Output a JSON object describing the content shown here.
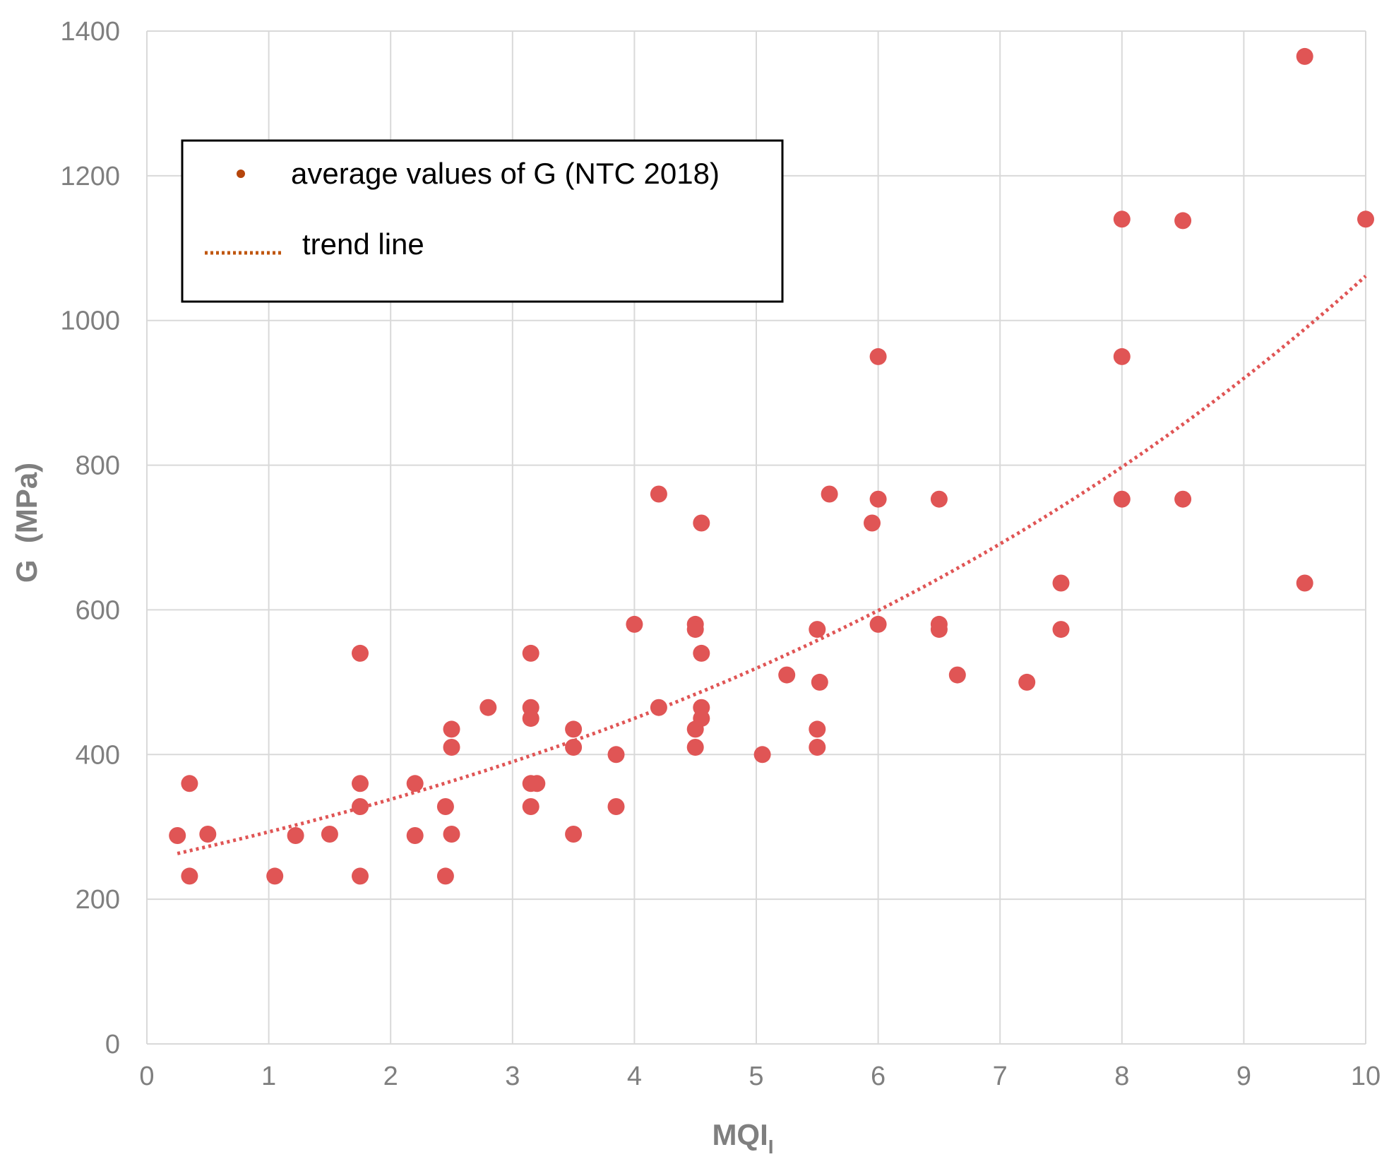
{
  "chart_data": {
    "type": "scatter",
    "xlabel": "MQI",
    "xlabel_subscript": "I",
    "ylabel": "G  (MPa)",
    "xlim": [
      0,
      10
    ],
    "ylim": [
      0,
      1400
    ],
    "x_ticks": [
      "0",
      "1",
      "2",
      "3",
      "4",
      "5",
      "6",
      "7",
      "8",
      "9",
      "10"
    ],
    "y_ticks": [
      "0",
      "200",
      "400",
      "600",
      "800",
      "1000",
      "1200",
      "1400"
    ],
    "grid": true,
    "legend_position": "top-left",
    "colors": {
      "points": "#e05555",
      "trend": "#e05555",
      "legend_marker": "#b5450b",
      "legend_trend": "#c0560f",
      "grid": "#d9d9d9",
      "axis_text": "#7f7f7f"
    },
    "series": [
      {
        "name": "average values of G (NTC 2018)",
        "points": [
          [
            0.25,
            288
          ],
          [
            0.35,
            360
          ],
          [
            0.35,
            232
          ],
          [
            0.5,
            290
          ],
          [
            1.05,
            232
          ],
          [
            1.22,
            288
          ],
          [
            1.5,
            290
          ],
          [
            1.75,
            540
          ],
          [
            1.75,
            360
          ],
          [
            1.75,
            328
          ],
          [
            1.75,
            232
          ],
          [
            2.2,
            360
          ],
          [
            2.2,
            288
          ],
          [
            2.45,
            328
          ],
          [
            2.45,
            232
          ],
          [
            2.5,
            435
          ],
          [
            2.5,
            410
          ],
          [
            2.5,
            290
          ],
          [
            2.8,
            465
          ],
          [
            3.15,
            540
          ],
          [
            3.15,
            465
          ],
          [
            3.15,
            450
          ],
          [
            3.15,
            360
          ],
          [
            3.2,
            360
          ],
          [
            3.15,
            328
          ],
          [
            3.5,
            435
          ],
          [
            3.5,
            410
          ],
          [
            3.5,
            290
          ],
          [
            3.85,
            400
          ],
          [
            3.85,
            328
          ],
          [
            4.0,
            580
          ],
          [
            4.2,
            760
          ],
          [
            4.2,
            465
          ],
          [
            4.5,
            580
          ],
          [
            4.5,
            573
          ],
          [
            4.5,
            435
          ],
          [
            4.5,
            410
          ],
          [
            4.55,
            720
          ],
          [
            4.55,
            540
          ],
          [
            4.55,
            465
          ],
          [
            4.55,
            450
          ],
          [
            5.05,
            400
          ],
          [
            5.25,
            510
          ],
          [
            5.5,
            573
          ],
          [
            5.52,
            500
          ],
          [
            5.5,
            435
          ],
          [
            5.5,
            410
          ],
          [
            5.6,
            760
          ],
          [
            5.95,
            720
          ],
          [
            6.0,
            950
          ],
          [
            6.0,
            753
          ],
          [
            6.0,
            580
          ],
          [
            6.5,
            753
          ],
          [
            6.5,
            580
          ],
          [
            6.5,
            573
          ],
          [
            6.65,
            510
          ],
          [
            7.22,
            500
          ],
          [
            7.5,
            637
          ],
          [
            7.5,
            573
          ],
          [
            8.0,
            1140
          ],
          [
            8.0,
            950
          ],
          [
            8.0,
            753
          ],
          [
            8.5,
            1138
          ],
          [
            8.5,
            753
          ],
          [
            9.5,
            1365
          ],
          [
            9.5,
            637
          ],
          [
            10.0,
            1140
          ]
        ]
      },
      {
        "name": "trend line",
        "style": "dotted",
        "model": "exponential",
        "a": 254,
        "b": 0.143,
        "x_range": [
          0.25,
          10.0
        ]
      }
    ]
  }
}
